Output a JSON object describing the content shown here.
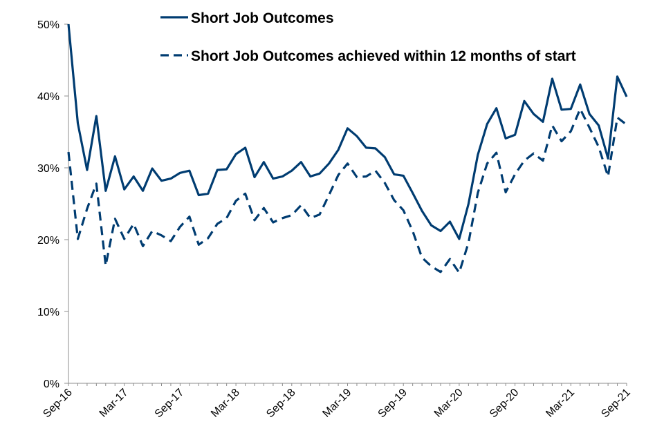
{
  "chart_data": {
    "type": "line",
    "title": "",
    "xlabel": "",
    "ylabel": "",
    "ylim": [
      0,
      0.5
    ],
    "yticks": [
      "0%",
      "10%",
      "20%",
      "30%",
      "40%",
      "50%"
    ],
    "xticks": [
      "Sep-16",
      "Mar-17",
      "Sep-17",
      "Mar-18",
      "Sep-18",
      "Mar-19",
      "Sep-19",
      "Mar-20",
      "Sep-20",
      "Mar-21",
      "Sep-21"
    ],
    "grid": false,
    "legend_placement": "top",
    "x": [
      "Sep-16",
      "Oct-16",
      "Nov-16",
      "Dec-16",
      "Jan-17",
      "Feb-17",
      "Mar-17",
      "Apr-17",
      "May-17",
      "Jun-17",
      "Jul-17",
      "Aug-17",
      "Sep-17",
      "Oct-17",
      "Nov-17",
      "Dec-17",
      "Jan-18",
      "Feb-18",
      "Mar-18",
      "Apr-18",
      "May-18",
      "Jun-18",
      "Jul-18",
      "Aug-18",
      "Sep-18",
      "Oct-18",
      "Nov-18",
      "Dec-18",
      "Jan-19",
      "Feb-19",
      "Mar-19",
      "Apr-19",
      "May-19",
      "Jun-19",
      "Jul-19",
      "Aug-19",
      "Sep-19",
      "Oct-19",
      "Nov-19",
      "Dec-19",
      "Jan-20",
      "Feb-20",
      "Mar-20",
      "Apr-20",
      "May-20",
      "Jun-20",
      "Jul-20",
      "Aug-20",
      "Sep-20",
      "Oct-20",
      "Nov-20",
      "Dec-20",
      "Jan-21",
      "Feb-21",
      "Mar-21",
      "Apr-21",
      "May-21",
      "Jun-21",
      "Jul-21",
      "Aug-21",
      "Sep-21"
    ],
    "series": [
      {
        "name": "Short Job Outcomes",
        "color": "#003C71",
        "dash": "solid",
        "values": [
          0.5,
          0.362,
          0.297,
          0.372,
          0.268,
          0.316,
          0.27,
          0.288,
          0.268,
          0.299,
          0.282,
          0.285,
          0.293,
          0.296,
          0.262,
          0.264,
          0.297,
          0.298,
          0.319,
          0.328,
          0.287,
          0.308,
          0.285,
          0.288,
          0.296,
          0.308,
          0.288,
          0.292,
          0.306,
          0.325,
          0.355,
          0.344,
          0.328,
          0.327,
          0.315,
          0.291,
          0.289,
          0.265,
          0.24,
          0.22,
          0.212,
          0.225,
          0.201,
          0.25,
          0.318,
          0.361,
          0.383,
          0.341,
          0.346,
          0.393,
          0.375,
          0.364,
          0.424,
          0.381,
          0.382,
          0.416,
          0.375,
          0.359,
          0.313,
          0.427,
          0.399
        ]
      },
      {
        "name": "Short Job Outcomes achieved within 12 months of start",
        "color": "#003C71",
        "dash": "dashed",
        "values": [
          0.322,
          0.201,
          0.243,
          0.278,
          0.164,
          0.229,
          0.201,
          0.222,
          0.191,
          0.212,
          0.206,
          0.198,
          0.218,
          0.232,
          0.193,
          0.202,
          0.222,
          0.23,
          0.254,
          0.264,
          0.227,
          0.244,
          0.224,
          0.23,
          0.234,
          0.248,
          0.23,
          0.235,
          0.262,
          0.29,
          0.306,
          0.287,
          0.288,
          0.296,
          0.279,
          0.255,
          0.241,
          0.212,
          0.175,
          0.163,
          0.155,
          0.173,
          0.154,
          0.196,
          0.265,
          0.306,
          0.321,
          0.266,
          0.291,
          0.31,
          0.32,
          0.31,
          0.359,
          0.337,
          0.351,
          0.382,
          0.356,
          0.329,
          0.288,
          0.37,
          0.36
        ]
      }
    ]
  }
}
